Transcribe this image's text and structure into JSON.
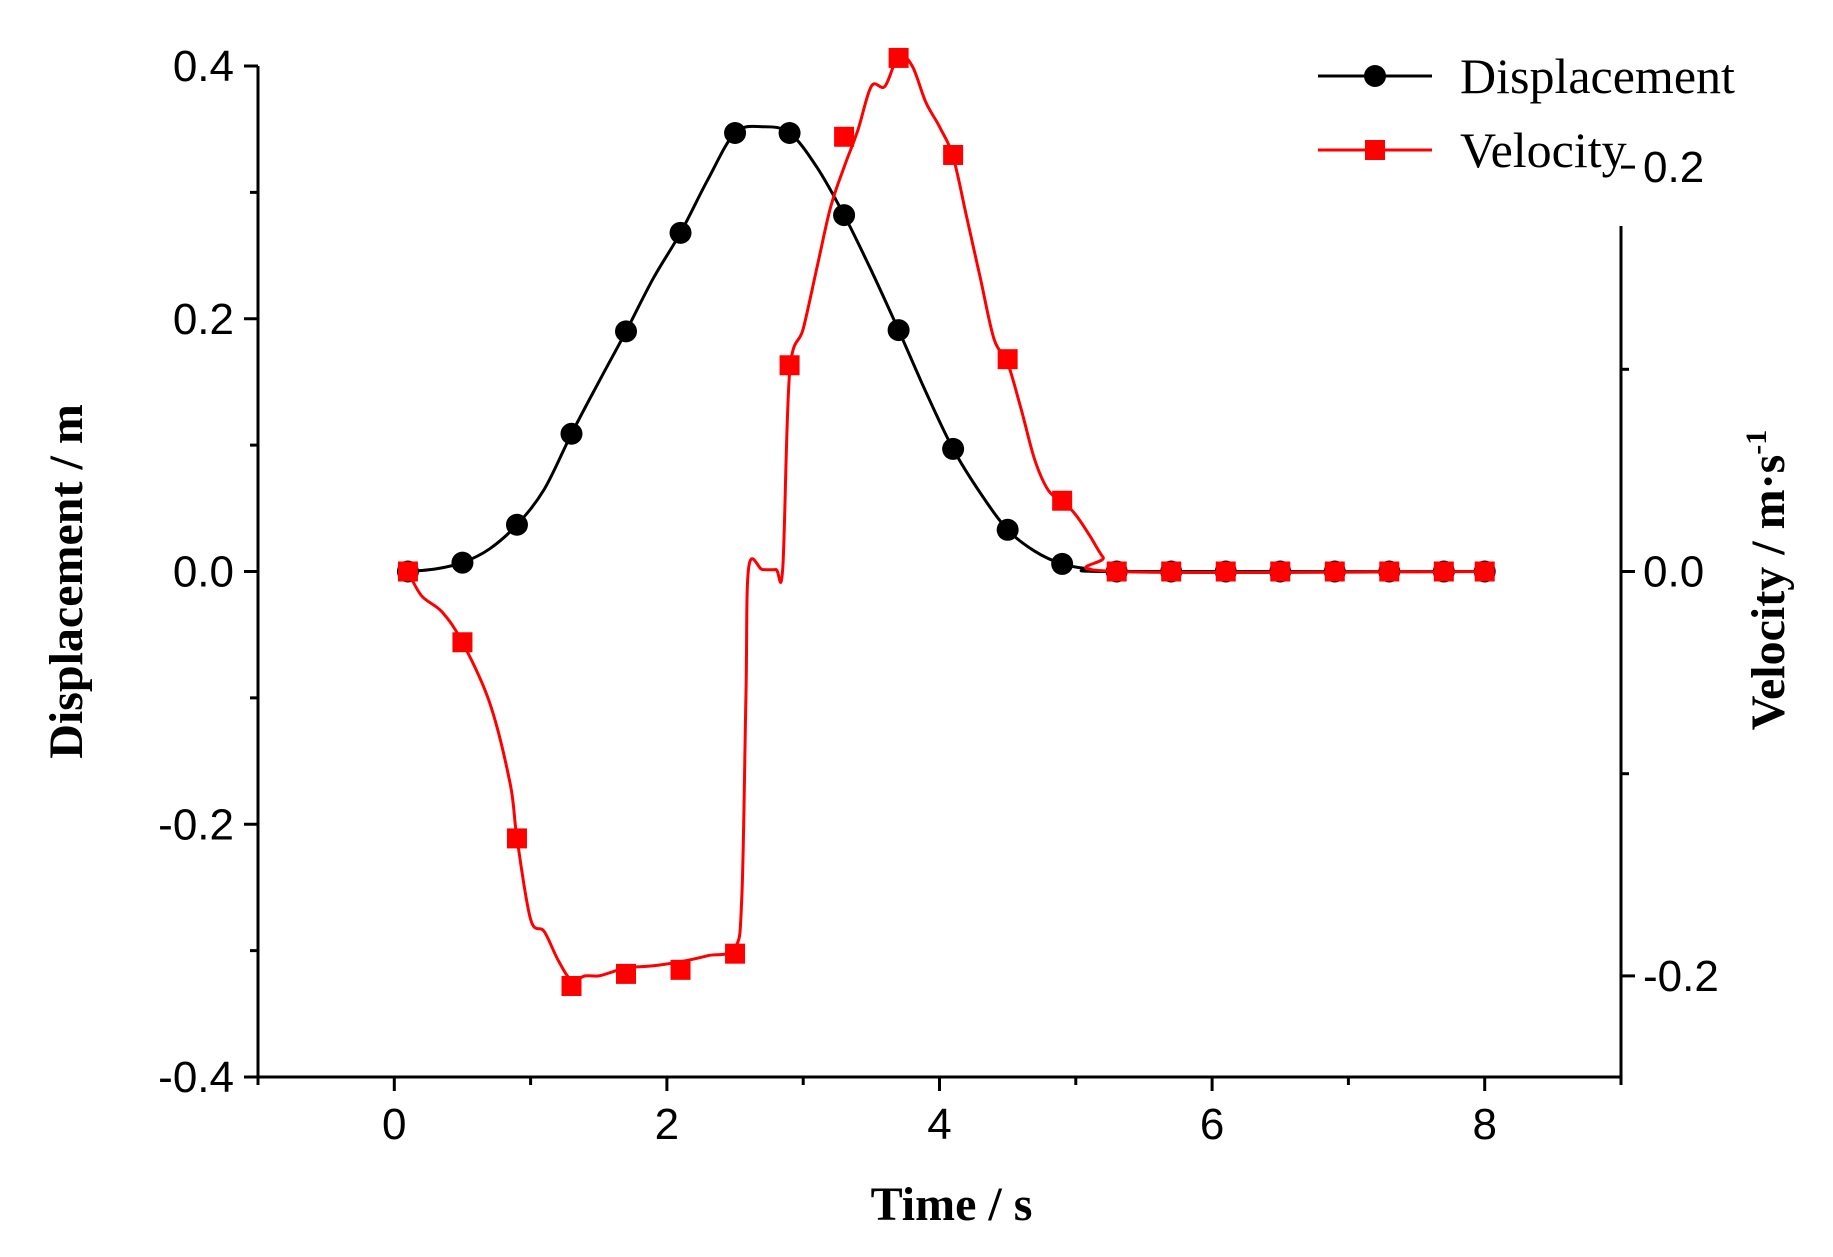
{
  "chart_data": {
    "type": "line",
    "title": "",
    "xlabel": "Time / s",
    "ylabel": "Displacement  / m",
    "y2label": "Velocity  / m·s",
    "y2label_superscript": "-1",
    "xlim": [
      -1,
      9
    ],
    "ylim": [
      -0.4,
      0.4
    ],
    "y2lim": [
      -0.25,
      0.25
    ],
    "x_ticks": [
      "0",
      "2",
      "4",
      "6",
      "8"
    ],
    "y_ticks": [
      "-0.4",
      "-0.2",
      "0.0",
      "0.2",
      "0.4"
    ],
    "y2_ticks": [
      "-0.2",
      "0.0",
      "0.2"
    ],
    "grid": false,
    "legend_position": "top-right",
    "series": [
      {
        "name": "Displacement",
        "axis": "left",
        "color": "#000000",
        "marker": "circle",
        "line": [
          [
            0.1,
            0.0
          ],
          [
            0.3,
            0.002
          ],
          [
            0.5,
            0.007
          ],
          [
            0.7,
            0.018
          ],
          [
            0.9,
            0.037
          ],
          [
            1.1,
            0.065
          ],
          [
            1.3,
            0.109
          ],
          [
            1.5,
            0.15
          ],
          [
            1.7,
            0.19
          ],
          [
            1.9,
            0.232
          ],
          [
            2.1,
            0.268
          ],
          [
            2.3,
            0.31
          ],
          [
            2.5,
            0.347
          ],
          [
            2.7,
            0.352
          ],
          [
            2.9,
            0.347
          ],
          [
            3.1,
            0.32
          ],
          [
            3.3,
            0.282
          ],
          [
            3.5,
            0.238
          ],
          [
            3.7,
            0.191
          ],
          [
            3.9,
            0.142
          ],
          [
            4.1,
            0.097
          ],
          [
            4.3,
            0.062
          ],
          [
            4.5,
            0.033
          ],
          [
            4.7,
            0.016
          ],
          [
            4.9,
            0.006
          ],
          [
            5.1,
            0.002
          ],
          [
            5.3,
            0.0
          ],
          [
            8.0,
            0.0
          ]
        ],
        "points": [
          [
            0.1,
            0.0
          ],
          [
            0.5,
            0.007
          ],
          [
            0.9,
            0.037
          ],
          [
            1.3,
            0.109
          ],
          [
            1.7,
            0.19
          ],
          [
            2.1,
            0.268
          ],
          [
            2.5,
            0.347
          ],
          [
            2.9,
            0.347
          ],
          [
            3.3,
            0.282
          ],
          [
            3.7,
            0.191
          ],
          [
            4.1,
            0.097
          ],
          [
            4.5,
            0.033
          ],
          [
            4.9,
            0.006
          ],
          [
            5.3,
            0.0
          ],
          [
            5.7,
            0.0
          ],
          [
            6.1,
            0.0
          ],
          [
            6.5,
            0.0
          ],
          [
            6.9,
            0.0
          ],
          [
            7.3,
            0.0
          ],
          [
            7.7,
            0.0
          ],
          [
            8.0,
            0.0
          ]
        ]
      },
      {
        "name": "Velocity",
        "axis": "right",
        "color": "#ff0000",
        "marker": "square",
        "line": [
          [
            0.1,
            0.0
          ],
          [
            0.2,
            -0.012
          ],
          [
            0.35,
            -0.02
          ],
          [
            0.5,
            -0.035
          ],
          [
            0.7,
            -0.065
          ],
          [
            0.85,
            -0.105
          ],
          [
            0.9,
            -0.132
          ],
          [
            1.0,
            -0.172
          ],
          [
            1.1,
            -0.178
          ],
          [
            1.2,
            -0.192
          ],
          [
            1.3,
            -0.202
          ],
          [
            1.4,
            -0.2
          ],
          [
            1.5,
            -0.2
          ],
          [
            1.6,
            -0.198
          ],
          [
            1.7,
            -0.196
          ],
          [
            1.9,
            -0.195
          ],
          [
            2.1,
            -0.193
          ],
          [
            2.3,
            -0.19
          ],
          [
            2.5,
            -0.186
          ],
          [
            2.55,
            -0.16
          ],
          [
            2.58,
            -0.06
          ],
          [
            2.6,
            0.002
          ],
          [
            2.7,
            0.001
          ],
          [
            2.8,
            0.001
          ],
          [
            2.85,
            0.002
          ],
          [
            2.9,
            0.098
          ],
          [
            3.0,
            0.12
          ],
          [
            3.1,
            0.15
          ],
          [
            3.2,
            0.18
          ],
          [
            3.3,
            0.2
          ],
          [
            3.4,
            0.218
          ],
          [
            3.5,
            0.24
          ],
          [
            3.6,
            0.24
          ],
          [
            3.7,
            0.255
          ],
          [
            3.8,
            0.25
          ],
          [
            3.9,
            0.232
          ],
          [
            4.0,
            0.22
          ],
          [
            4.1,
            0.205
          ],
          [
            4.2,
            0.175
          ],
          [
            4.3,
            0.145
          ],
          [
            4.4,
            0.115
          ],
          [
            4.5,
            0.103
          ],
          [
            4.6,
            0.08
          ],
          [
            4.7,
            0.055
          ],
          [
            4.8,
            0.04
          ],
          [
            4.9,
            0.035
          ],
          [
            5.0,
            0.028
          ],
          [
            5.1,
            0.018
          ],
          [
            5.2,
            0.007
          ],
          [
            5.3,
            0.0
          ],
          [
            8.0,
            0.0
          ]
        ],
        "points": [
          [
            0.1,
            0.0
          ],
          [
            0.5,
            -0.035
          ],
          [
            0.9,
            -0.132
          ],
          [
            1.3,
            -0.205
          ],
          [
            1.7,
            -0.199
          ],
          [
            2.1,
            -0.197
          ],
          [
            2.5,
            -0.189
          ],
          [
            2.9,
            0.102
          ],
          [
            3.3,
            0.215
          ],
          [
            3.7,
            0.254
          ],
          [
            4.1,
            0.206
          ],
          [
            4.5,
            0.105
          ],
          [
            4.9,
            0.035
          ],
          [
            5.3,
            0.0
          ],
          [
            5.7,
            0.0
          ],
          [
            6.1,
            0.0
          ],
          [
            6.5,
            0.0
          ],
          [
            6.9,
            0.0
          ],
          [
            7.3,
            0.0
          ],
          [
            7.7,
            0.0
          ],
          [
            8.0,
            0.0
          ]
        ]
      }
    ]
  }
}
